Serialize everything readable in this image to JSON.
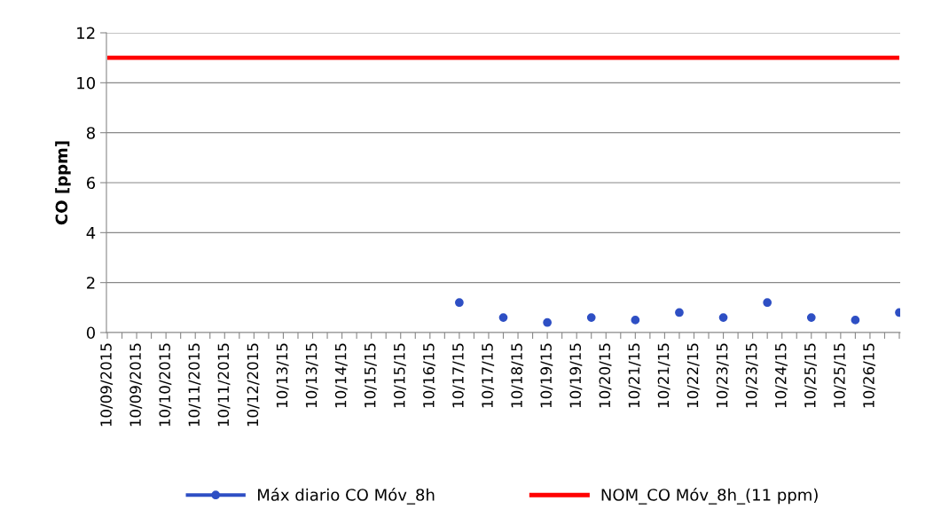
{
  "chart_data": {
    "type": "line",
    "ylabel": "CO [ppm]",
    "categories": [
      "10/09/2015",
      null,
      "10/09/2015",
      null,
      "10/10/2015",
      null,
      "10/11/2015",
      null,
      "10/11/2015",
      null,
      "10/12/2015",
      null,
      "10/13/15",
      null,
      "10/13/15",
      null,
      "10/14/15",
      null,
      "10/15/15",
      null,
      "10/15/15",
      null,
      "10/16/15",
      null,
      "10/17/15",
      null,
      "10/17/15",
      null,
      "10/18/15",
      null,
      "10/19/15",
      null,
      "10/19/15",
      null,
      "10/20/15",
      null,
      "10/21/15",
      null,
      "10/21/15",
      null,
      "10/22/15",
      null,
      "10/23/15",
      null,
      "10/23/15",
      null,
      "10/24/15",
      null,
      "10/25/15",
      null,
      "10/25/15",
      null,
      "10/26/15",
      null,
      null
    ],
    "series": [
      {
        "name": "Máx diario CO Móv_8h",
        "type": "scatter",
        "color": "#2e4fc4",
        "marker": "circle",
        "values": [
          null,
          null,
          null,
          null,
          null,
          null,
          null,
          null,
          null,
          null,
          null,
          null,
          null,
          null,
          null,
          null,
          null,
          null,
          null,
          null,
          null,
          null,
          null,
          null,
          1.2,
          null,
          null,
          0.6,
          null,
          null,
          0.4,
          null,
          null,
          0.6,
          null,
          null,
          0.5,
          null,
          null,
          0.8,
          null,
          null,
          0.6,
          null,
          null,
          1.2,
          null,
          null,
          0.6,
          null,
          null,
          0.5,
          null,
          null,
          0.8
        ]
      },
      {
        "name": "NOM_CO Móv_8h_(11 ppm)",
        "color": "#ff0000",
        "values": [
          11,
          11,
          11,
          11,
          11,
          11,
          11,
          11,
          11,
          11,
          11,
          11,
          11,
          11,
          11,
          11,
          11,
          11,
          11,
          11,
          11,
          11,
          11,
          11,
          11,
          11,
          11,
          11,
          11,
          11,
          11,
          11,
          11,
          11,
          11,
          11,
          11,
          11,
          11,
          11,
          11,
          11,
          11,
          11,
          11,
          11,
          11,
          11,
          11,
          11,
          11,
          11,
          11,
          11,
          11
        ]
      }
    ],
    "ylim": [
      0,
      12
    ],
    "yticks": [
      0,
      2,
      4,
      6,
      8,
      10,
      12
    ],
    "grid": "y",
    "legend": "bottom"
  }
}
